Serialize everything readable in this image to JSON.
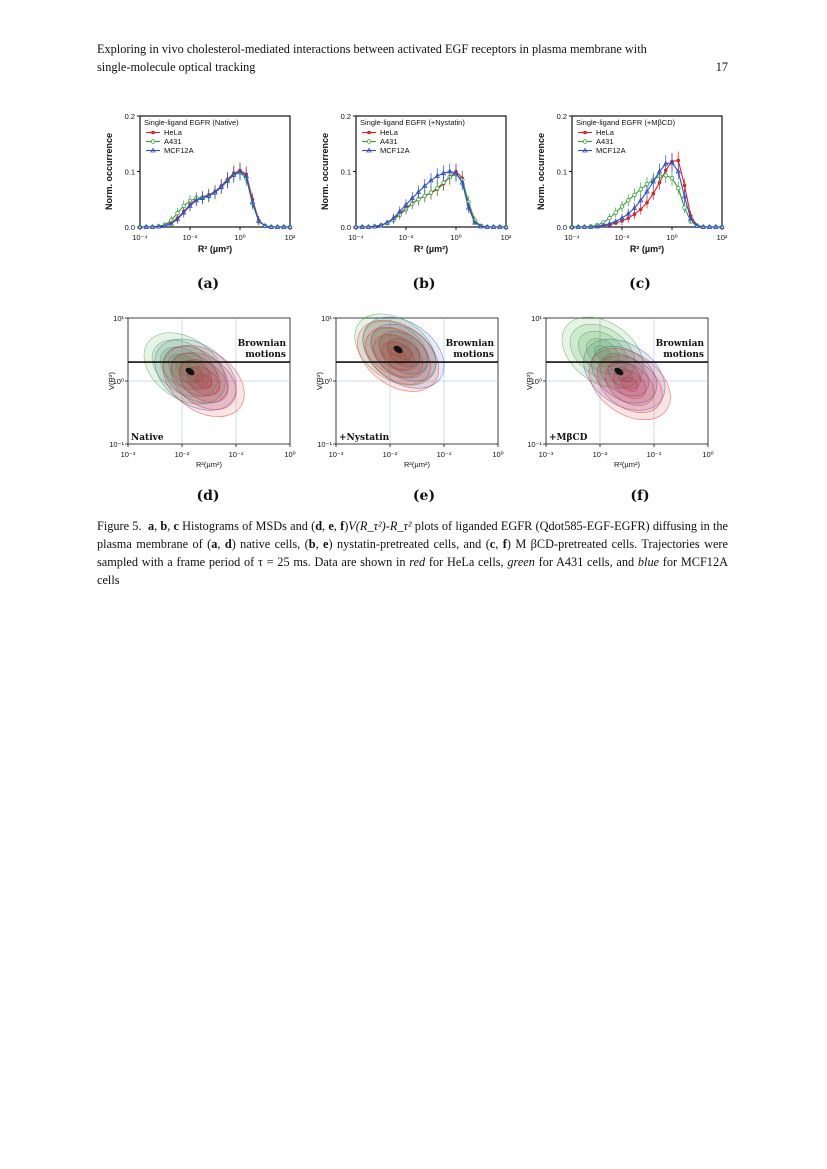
{
  "header": {
    "title_line1": "Exploring in vivo cholesterol-mediated interactions between activated EGF receptors in plasma membrane with",
    "title_line2": "single-molecule optical tracking",
    "page_number": "17"
  },
  "colors": {
    "hela": "#e02020",
    "a431": "#2fa02f",
    "mcf12a": "#2e4fc8"
  },
  "histograms": {
    "ylabel": "Norm. occurrence",
    "xlabel": "R² (µm²)",
    "yticks": [
      "0.0",
      "0.1",
      "0.2"
    ],
    "xticks": [
      "10⁻⁴",
      "10⁻²",
      "10⁰",
      "10²"
    ],
    "legend": [
      "HeLa",
      "A431",
      "MCF12A"
    ],
    "panels": [
      {
        "label": "(a)",
        "title": "Single-ligand EGFR (Native)"
      },
      {
        "label": "(b)",
        "title": "Single-ligand EGFR (+Nystatin)"
      },
      {
        "label": "(c)",
        "title": "Single-ligand EGFR (+MβCD)"
      }
    ]
  },
  "chart_data": [
    {
      "type": "line",
      "title": "Single-ligand EGFR (Native)",
      "xlabel": "R² (µm²)",
      "ylabel": "Norm. occurrence",
      "x_scale": "log",
      "xlim": [
        0.0001,
        100
      ],
      "ylim": [
        0,
        0.2
      ],
      "x": [
        0.0001,
        0.000178,
        0.000316,
        0.000562,
        0.001,
        0.00178,
        0.00316,
        0.00562,
        0.01,
        0.0178,
        0.0316,
        0.0562,
        0.1,
        0.178,
        0.316,
        0.562,
        1.0,
        1.78,
        3.16,
        5.62,
        10,
        17.8,
        31.6,
        56.2,
        100
      ],
      "series": [
        {
          "name": "HeLa",
          "values": [
            0,
            0,
            0,
            0.001,
            0.003,
            0.008,
            0.016,
            0.028,
            0.04,
            0.05,
            0.054,
            0.058,
            0.064,
            0.074,
            0.086,
            0.097,
            0.102,
            0.095,
            0.05,
            0.012,
            0.002,
            0,
            0,
            0,
            0
          ]
        },
        {
          "name": "A431",
          "values": [
            0,
            0,
            0,
            0.001,
            0.004,
            0.012,
            0.025,
            0.038,
            0.047,
            0.052,
            0.053,
            0.056,
            0.062,
            0.072,
            0.084,
            0.094,
            0.098,
            0.088,
            0.042,
            0.01,
            0.002,
            0,
            0,
            0,
            0
          ]
        },
        {
          "name": "MCF12A",
          "values": [
            0,
            0,
            0,
            0.001,
            0.002,
            0.006,
            0.014,
            0.026,
            0.038,
            0.048,
            0.052,
            0.056,
            0.062,
            0.072,
            0.083,
            0.094,
            0.1,
            0.092,
            0.045,
            0.011,
            0.002,
            0,
            0,
            0,
            0
          ]
        }
      ]
    },
    {
      "type": "line",
      "title": "Single-ligand EGFR (+Nystatin)",
      "xlabel": "R² (µm²)",
      "ylabel": "Norm. occurrence",
      "x_scale": "log",
      "xlim": [
        0.0001,
        100
      ],
      "ylim": [
        0,
        0.2
      ],
      "x": [
        0.0001,
        0.000178,
        0.000316,
        0.000562,
        0.001,
        0.00178,
        0.00316,
        0.00562,
        0.01,
        0.0178,
        0.0316,
        0.0562,
        0.1,
        0.178,
        0.316,
        0.562,
        1.0,
        1.78,
        3.16,
        5.62,
        10,
        17.8,
        31.6,
        56.2,
        100
      ],
      "series": [
        {
          "name": "HeLa",
          "values": [
            0,
            0,
            0,
            0.001,
            0.003,
            0.008,
            0.015,
            0.024,
            0.034,
            0.043,
            0.05,
            0.056,
            0.061,
            0.068,
            0.078,
            0.09,
            0.1,
            0.088,
            0.04,
            0.01,
            0.002,
            0,
            0,
            0,
            0
          ]
        },
        {
          "name": "A431",
          "values": [
            0,
            0,
            0,
            0.001,
            0.003,
            0.007,
            0.013,
            0.022,
            0.032,
            0.042,
            0.05,
            0.056,
            0.062,
            0.07,
            0.08,
            0.09,
            0.095,
            0.085,
            0.045,
            0.012,
            0.002,
            0,
            0,
            0,
            0
          ]
        },
        {
          "name": "MCF12A",
          "values": [
            0,
            0,
            0,
            0.001,
            0.003,
            0.008,
            0.016,
            0.028,
            0.04,
            0.052,
            0.063,
            0.074,
            0.084,
            0.092,
            0.097,
            0.1,
            0.097,
            0.08,
            0.035,
            0.008,
            0.001,
            0,
            0,
            0,
            0
          ]
        }
      ]
    },
    {
      "type": "line",
      "title": "Single-ligand EGFR (+MβCD)",
      "xlabel": "R² (µm²)",
      "ylabel": "Norm. occurrence",
      "x_scale": "log",
      "xlim": [
        0.0001,
        100
      ],
      "ylim": [
        0,
        0.2
      ],
      "x": [
        0.0001,
        0.000178,
        0.000316,
        0.000562,
        0.001,
        0.00178,
        0.00316,
        0.00562,
        0.01,
        0.0178,
        0.0316,
        0.0562,
        0.1,
        0.178,
        0.316,
        0.562,
        1.0,
        1.78,
        3.16,
        5.62,
        10,
        17.8,
        31.6,
        56.2,
        100
      ],
      "series": [
        {
          "name": "HeLa",
          "values": [
            0,
            0,
            0,
            0,
            0.001,
            0.002,
            0.004,
            0.007,
            0.011,
            0.016,
            0.023,
            0.032,
            0.044,
            0.06,
            0.08,
            0.102,
            0.118,
            0.12,
            0.075,
            0.02,
            0.003,
            0,
            0,
            0,
            0
          ]
        },
        {
          "name": "A431",
          "values": [
            0,
            0,
            0,
            0.001,
            0.003,
            0.008,
            0.016,
            0.026,
            0.037,
            0.048,
            0.058,
            0.068,
            0.077,
            0.085,
            0.092,
            0.093,
            0.088,
            0.07,
            0.035,
            0.01,
            0.002,
            0,
            0,
            0,
            0
          ]
        },
        {
          "name": "MCF12A",
          "values": [
            0,
            0,
            0,
            0,
            0.001,
            0.003,
            0.006,
            0.01,
            0.016,
            0.024,
            0.034,
            0.048,
            0.064,
            0.082,
            0.1,
            0.114,
            0.116,
            0.1,
            0.055,
            0.015,
            0.002,
            0,
            0,
            0,
            0
          ]
        }
      ]
    }
  ],
  "density": {
    "ylabel": "V(R²)",
    "xlabel": "R²(µm²)",
    "yticks": [
      "10⁻¹",
      "10⁰",
      "10¹"
    ],
    "xticks": [
      "10⁻³",
      "10⁻²",
      "10⁻¹",
      "10⁰"
    ],
    "brownian_line1": "Brownian",
    "brownian_line2": "motions",
    "panels": [
      {
        "label": "(d)",
        "condition": "Native"
      },
      {
        "label": "(e)",
        "condition": "+Nystatin"
      },
      {
        "label": "(f)",
        "condition": "+MβCD"
      }
    ]
  },
  "caption": {
    "fig": "Figure 5.",
    "a": "a",
    "b": "b",
    "c": "c",
    "d": "d",
    "e": "e",
    "f": "f",
    "t1": "Histograms of MSDs and (",
    "t2": ")",
    "math": "V(R_τ²)-R_τ²",
    "t3": "plots of liganded EGFR (Qdot585-EGF-EGFR) diffusing in the plasma membrane of (",
    "t4": ") native cells, (",
    "t5": ") nystatin-pretreated cells, and (",
    "t6": ") M βCD-pretreated cells. Trajectories were sampled with a frame period of τ = 25 ms. Data are shown in ",
    "red": "red",
    "t7": " for HeLa cells, ",
    "green": "green",
    "t8": " for A431 cells, and ",
    "blue": "blue",
    "t9": " for MCF12A cells"
  }
}
